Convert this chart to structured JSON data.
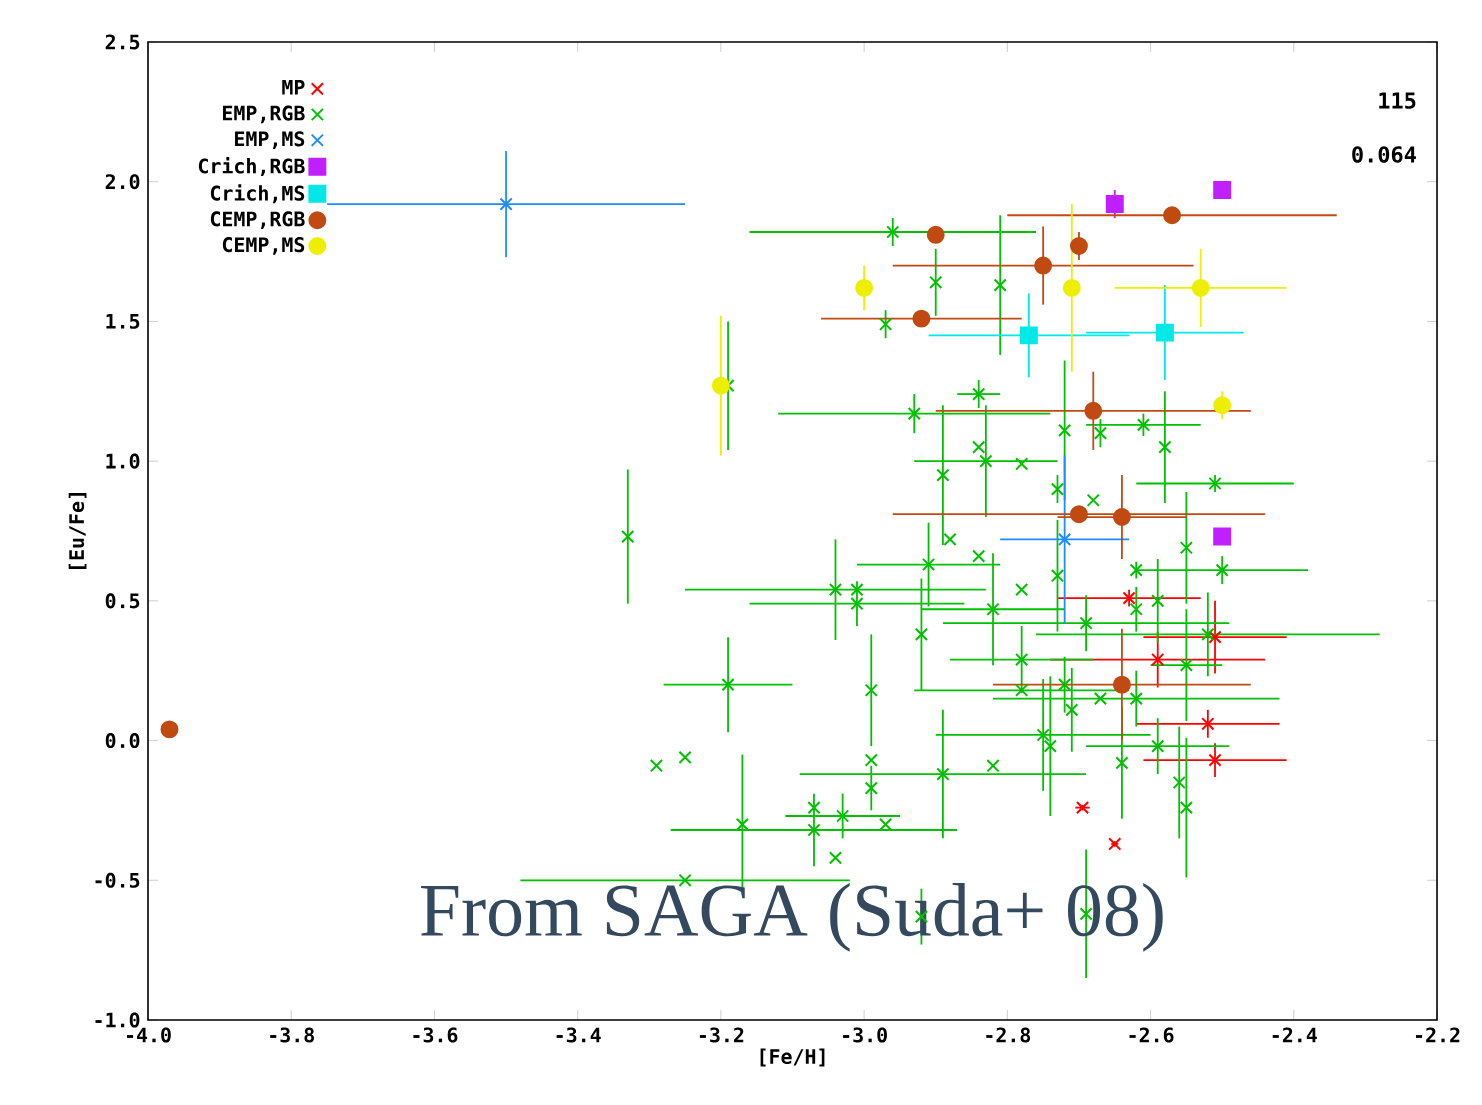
{
  "chart_data": {
    "type": "scatter",
    "xlabel": "[Fe/H]",
    "ylabel": "[Eu/Fe]",
    "legend": "top left",
    "xlim": [
      -4.0,
      -2.2
    ],
    "ylim": [
      -1.0,
      2.5
    ],
    "xticks": [
      {
        "value": -4.0,
        "label": "-4.0"
      },
      {
        "value": -3.8,
        "label": "-3.8"
      },
      {
        "value": -3.6,
        "label": "-3.6"
      },
      {
        "value": -3.4,
        "label": "-3.4"
      },
      {
        "value": -3.2,
        "label": "-3.2"
      },
      {
        "value": -3.0,
        "label": "-3.0"
      },
      {
        "value": -2.8,
        "label": "-2.8"
      },
      {
        "value": -2.6,
        "label": "-2.6"
      },
      {
        "value": -2.4,
        "label": "-2.4"
      },
      {
        "value": -2.2,
        "label": "-2.2"
      }
    ],
    "yticks": [
      {
        "value": -1.0,
        "label": "-1.0"
      },
      {
        "value": -0.5,
        "label": "-0.5"
      },
      {
        "value": 0.0,
        "label": "0.0"
      },
      {
        "value": 0.5,
        "label": "0.5"
      },
      {
        "value": 1.0,
        "label": "1.0"
      },
      {
        "value": 1.5,
        "label": "1.5"
      },
      {
        "value": 2.0,
        "label": "2.0"
      },
      {
        "value": 2.5,
        "label": "2.5"
      }
    ],
    "annotations": [
      "115",
      "0.064",
      "From SAGA (Suda+ 08)"
    ],
    "series": [
      {
        "name": "MP",
        "color": "#ff0000",
        "marker": "cross",
        "x": [
          -2.63,
          -2.51,
          -2.59,
          -2.52,
          -2.51,
          -2.695,
          -2.65
        ],
        "values": [
          0.51,
          0.37,
          0.29,
          0.06,
          -0.07,
          -0.24,
          -0.37
        ],
        "xerrors": [
          0.1,
          0.1,
          0.15,
          0.1,
          0.1,
          0.01,
          0.005
        ],
        "errors": [
          0.03,
          0.13,
          0.1,
          0.05,
          0.06,
          0.01,
          0.01
        ]
      },
      {
        "name": "EMP,RGB",
        "color": "#00c000",
        "marker": "cross",
        "x": [
          -3.33,
          -3.19,
          -3.19,
          -3.29,
          -3.25,
          -3.17,
          -3.25,
          -2.96,
          -2.9,
          -2.81,
          -2.97,
          -2.93,
          -2.84,
          -2.84,
          -2.83,
          -2.78,
          -2.61,
          -2.58,
          -2.51,
          -2.89,
          -2.88,
          -2.91,
          -3.04,
          -3.01,
          -3.01,
          -2.92,
          -2.99,
          -2.99,
          -2.99,
          -2.89,
          -2.82,
          -3.07,
          -3.07,
          -3.03,
          -3.04,
          -2.97,
          -2.84,
          -2.82,
          -2.78,
          -2.78,
          -2.78,
          -2.75,
          -2.74,
          -2.73,
          -2.73,
          -2.69,
          -2.71,
          -2.67,
          -2.62,
          -2.62,
          -2.62,
          -2.59,
          -2.55,
          -2.5,
          -2.55,
          -2.52,
          -2.64,
          -2.59,
          -2.56,
          -2.55,
          -2.69,
          -2.92,
          -2.72,
          -2.67,
          -2.72,
          -2.68
        ],
        "values": [
          0.73,
          1.27,
          0.2,
          -0.09,
          -0.06,
          -0.3,
          -0.5,
          1.82,
          1.64,
          1.63,
          1.49,
          1.17,
          1.24,
          1.05,
          1.0,
          0.99,
          1.13,
          1.05,
          0.92,
          0.95,
          0.72,
          0.63,
          0.54,
          0.54,
          0.49,
          0.38,
          0.18,
          -0.07,
          -0.17,
          -0.12,
          -0.09,
          -0.32,
          -0.24,
          -0.27,
          -0.42,
          -0.3,
          0.66,
          0.47,
          0.54,
          0.29,
          0.18,
          0.02,
          -0.02,
          0.59,
          0.9,
          0.42,
          0.11,
          0.15,
          0.15,
          0.47,
          0.61,
          0.5,
          0.69,
          0.61,
          0.27,
          0.38,
          -0.08,
          -0.02,
          -0.15,
          -0.24,
          -0.62,
          -0.63,
          0.2,
          1.1,
          1.11,
          0.86
        ],
        "xerrors": [
          null,
          null,
          0.09,
          null,
          null,
          null,
          0.23,
          0.2,
          null,
          null,
          null,
          0.19,
          0.03,
          null,
          0.1,
          null,
          0.08,
          null,
          0.11,
          null,
          null,
          0.1,
          0.21,
          null,
          0.15,
          null,
          null,
          null,
          null,
          0.2,
          null,
          0.2,
          null,
          0.08,
          null,
          null,
          null,
          0.1,
          null,
          0.1,
          0.15,
          0.15,
          null,
          null,
          null,
          0.2,
          null,
          null,
          0.2,
          null,
          null,
          null,
          null,
          0.12,
          0.05,
          0.24,
          null,
          0.1,
          null,
          null,
          null,
          null,
          null,
          null,
          null,
          null
        ],
        "errors": [
          0.24,
          0.23,
          0.17,
          null,
          null,
          0.25,
          null,
          0.05,
          0.12,
          0.25,
          0.05,
          0.07,
          0.05,
          null,
          0.2,
          null,
          0.04,
          0.2,
          0.03,
          0.25,
          null,
          0.15,
          0.18,
          null,
          0.08,
          0.2,
          0.2,
          null,
          0.08,
          0.23,
          null,
          0.13,
          null,
          0.08,
          null,
          null,
          null,
          0.2,
          null,
          0.12,
          null,
          0.2,
          0.25,
          0.2,
          0.05,
          0.1,
          0.15,
          null,
          0.1,
          0.08,
          0.03,
          0.15,
          0.2,
          0.05,
          0.2,
          0.15,
          0.2,
          0.1,
          0.2,
          0.25,
          0.23,
          0.1,
          0.1,
          0.05,
          0.25,
          null
        ]
      },
      {
        "name": "EMP,MS",
        "color": "#1e8cff",
        "marker": "cross",
        "x": [
          -3.5,
          -2.72
        ],
        "values": [
          1.92,
          0.72
        ],
        "xerrors": [
          0.25,
          0.09
        ],
        "errors": [
          0.19,
          0.3
        ]
      },
      {
        "name": "Crich,RGB",
        "color": "#c020ff",
        "marker": "square",
        "x": [
          -2.65,
          -2.5,
          -2.5
        ],
        "values": [
          1.92,
          1.97,
          0.73
        ],
        "errors": [
          0.05,
          null,
          null
        ]
      },
      {
        "name": "Crich,MS",
        "color": "#00e8e8",
        "marker": "square",
        "x": [
          -2.77,
          -2.58
        ],
        "values": [
          1.45,
          1.46
        ],
        "xerrors": [
          0.14,
          0.11
        ],
        "errors": [
          0.15,
          0.17
        ]
      },
      {
        "name": "CEMP,RGB",
        "color": "#c04a10",
        "marker": "circle",
        "x": [
          -3.97,
          -2.9,
          -2.57,
          -2.7,
          -2.75,
          -2.92,
          -2.68,
          -2.7,
          -2.64,
          -2.64
        ],
        "values": [
          0.04,
          1.81,
          1.88,
          1.77,
          1.7,
          1.51,
          1.18,
          0.81,
          0.8,
          0.2
        ],
        "xerrors": [
          null,
          null,
          0.23,
          null,
          0.21,
          0.14,
          0.22,
          0.26,
          0.09,
          0.18
        ],
        "errors": [
          null,
          null,
          null,
          0.05,
          0.14,
          null,
          0.14,
          null,
          0.15,
          0.2
        ]
      },
      {
        "name": "CEMP,MS",
        "color": "#eeee00",
        "marker": "circle",
        "x": [
          -3.0,
          -2.71,
          -2.53,
          -3.2,
          -2.5
        ],
        "values": [
          1.62,
          1.62,
          1.62,
          1.27,
          1.2
        ],
        "xerrors": [
          null,
          null,
          0.12,
          null,
          null
        ],
        "errors": [
          0.08,
          0.3,
          0.14,
          0.25,
          0.05
        ]
      }
    ]
  }
}
